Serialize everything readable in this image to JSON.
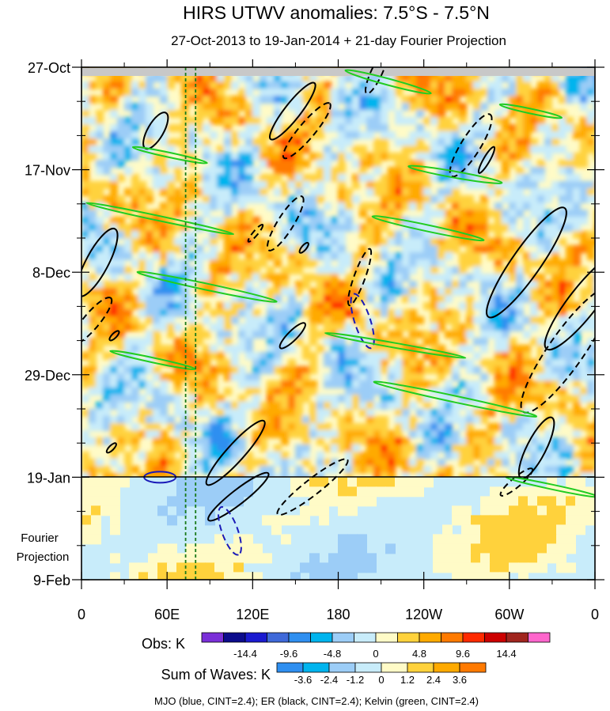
{
  "chart_data": {
    "type": "heatmap",
    "title": "HIRS UTWV anomalies: 7.5°S - 7.5°N",
    "subtitle": "27-Oct-2013 to 19-Jan-2014 + 21-day Fourier Projection",
    "x_tick_labels": [
      "0",
      "60E",
      "120E",
      "180",
      "120W",
      "60W",
      "0"
    ],
    "x_range": [
      0,
      360
    ],
    "y_tick_labels": [
      "27-Oct",
      "17-Nov",
      "8-Dec",
      "29-Dec",
      "19-Jan",
      "9-Feb"
    ],
    "y_tick_days": [
      0,
      21,
      42,
      63,
      84,
      105
    ],
    "y_range_days": [
      0,
      105
    ],
    "projection_start_day": 84,
    "projection_label": [
      "Fourier",
      "Projection"
    ],
    "mjo_reference_lon": [
      73,
      80
    ],
    "obs_legend": {
      "label": "Obs: K",
      "colors": [
        "#7a2fd8",
        "#0c0c8c",
        "#1a1ad0",
        "#3f69d9",
        "#2f8ff0",
        "#00b4ee",
        "#9ccdf7",
        "#c8ecfa",
        "#fffbc7",
        "#ffd23c",
        "#ffaa00",
        "#ff7a00",
        "#ff2a00",
        "#cc0000",
        "#a0251e",
        "#ff66cc"
      ],
      "tick_labels": [
        "-14.4",
        "-9.6",
        "-4.8",
        "0",
        "4.8",
        "9.6",
        "14.4"
      ]
    },
    "waves_legend": {
      "label": "Sum of Waves: K",
      "colors": [
        "#2f8ff0",
        "#00b4ee",
        "#9ccdf7",
        "#c8ecfa",
        "#fffbc7",
        "#ffd23c",
        "#ffaa00",
        "#ff7a00"
      ],
      "tick_labels": [
        "-3.6",
        "-2.4",
        "-1.2",
        "0",
        "1.2",
        "2.4",
        "3.6"
      ]
    },
    "footer": "MJO (blue, CINT=2.4); ER (black, CINT=2.4); Kelvin (green, CINT=2.4)"
  }
}
